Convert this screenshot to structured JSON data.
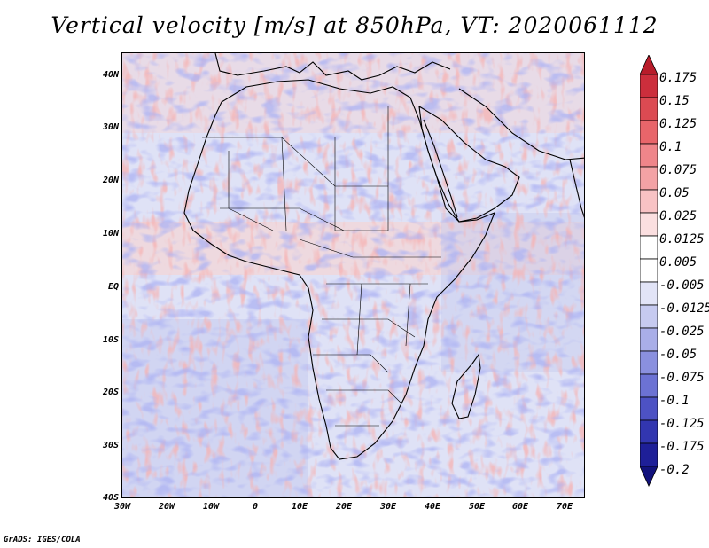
{
  "title": "Vertical velocity [m/s] at 850hPa, VT: 2020061112",
  "footer": "GrADS: IGES/COLA",
  "map": {
    "variable": "Vertical velocity",
    "units": "m/s",
    "level": "850hPa",
    "valid_time": "2020061112",
    "lat_range": [
      -40,
      45
    ],
    "lon_range": [
      -30,
      75
    ],
    "lat_labels": [
      "40N",
      "30N",
      "20N",
      "10N",
      "EQ",
      "10S",
      "20S",
      "30S",
      "40S"
    ],
    "lat_values": [
      40,
      30,
      20,
      10,
      0,
      -10,
      -20,
      -30,
      -40
    ],
    "lon_labels": [
      "30W",
      "20W",
      "10W",
      "0",
      "10E",
      "20E",
      "30E",
      "40E",
      "50E",
      "60E",
      "70E"
    ],
    "lon_values": [
      -30,
      -20,
      -10,
      0,
      10,
      20,
      30,
      40,
      50,
      60,
      70
    ]
  },
  "colorbar": {
    "labels": [
      "0.175",
      "0.15",
      "0.125",
      "0.1",
      "0.075",
      "0.05",
      "0.025",
      "0.0125",
      "0.005",
      "-0.005",
      "-0.0125",
      "-0.025",
      "-0.05",
      "-0.075",
      "-0.1",
      "-0.125",
      "-0.175",
      "-0.2"
    ],
    "colors": [
      "#b81c2a",
      "#cc2e3c",
      "#dc4a52",
      "#e8656a",
      "#ef858a",
      "#f3a2a5",
      "#f8c2c4",
      "#fbdfe0",
      "#ffffff",
      "#ffffff",
      "#e2e4f7",
      "#c6caf0",
      "#a9aee8",
      "#8a90df",
      "#6c72d4",
      "#4d52c4",
      "#3236b0",
      "#1e1f98",
      "#12127c"
    ]
  }
}
